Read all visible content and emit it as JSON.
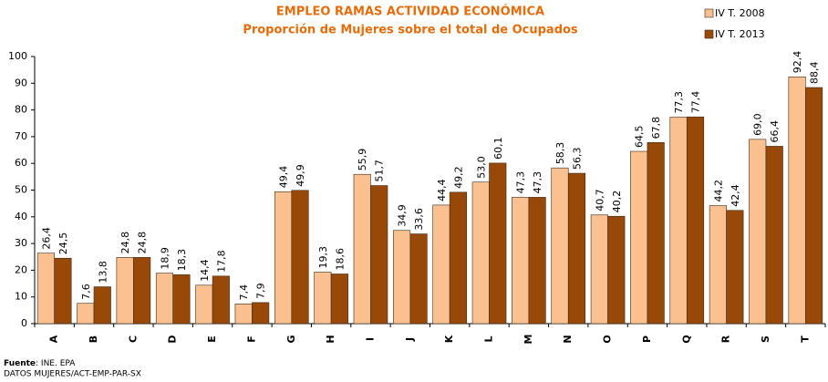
{
  "chart_data": {
    "type": "bar",
    "title": "EMPLEO RAMAS ACTIVIDAD ECONÓMICA",
    "subtitle": "Proporción de Mujeres sobre el total de Ocupados",
    "categories": [
      "A",
      "B",
      "C",
      "D",
      "E",
      "F",
      "G",
      "H",
      "I",
      "J",
      "K",
      "L",
      "M",
      "N",
      "O",
      "P",
      "Q",
      "R",
      "S",
      "T"
    ],
    "series": [
      {
        "name": "IV T. 2008",
        "color": "#FAC090",
        "values": [
          26.4,
          7.6,
          24.8,
          18.9,
          14.4,
          7.4,
          49.4,
          19.3,
          55.9,
          34.9,
          44.4,
          53.0,
          47.3,
          58.3,
          40.7,
          64.5,
          77.3,
          44.2,
          69.0,
          92.4
        ],
        "value_labels": [
          "26,4",
          "7,6",
          "24,8",
          "18,9",
          "14,4",
          "7,4",
          "49,4",
          "19,3",
          "55,9",
          "34,9",
          "44,4",
          "53,0",
          "47,3",
          "58,3",
          "40,7",
          "64,5",
          "77,3",
          "44,2",
          "69,0",
          "92,4"
        ]
      },
      {
        "name": "IV T. 2013",
        "color": "#984807",
        "values": [
          24.5,
          13.8,
          24.8,
          18.3,
          17.8,
          7.9,
          49.9,
          18.6,
          51.7,
          33.6,
          49.2,
          60.1,
          47.3,
          56.3,
          40.2,
          67.8,
          77.4,
          42.4,
          66.4,
          88.4
        ],
        "value_labels": [
          "24,5",
          "13,8",
          "24,8",
          "18,3",
          "17,8",
          "7,9",
          "49,9",
          "18,6",
          "51,7",
          "33,6",
          "49,2",
          "60,1",
          "47,3",
          "56,3",
          "40,2",
          "67,8",
          "77,4",
          "42,4",
          "66,4",
          "88,4"
        ]
      }
    ],
    "ylim": [
      0,
      100
    ],
    "yticks": [
      0,
      10,
      20,
      30,
      40,
      50,
      60,
      70,
      80,
      90,
      100
    ],
    "grid": false,
    "legend": "top-right",
    "source_label": "Fuente",
    "source": ": INE. EPA",
    "note": "DATOS MUJERES/ACT-EMP-PAR-SX"
  }
}
